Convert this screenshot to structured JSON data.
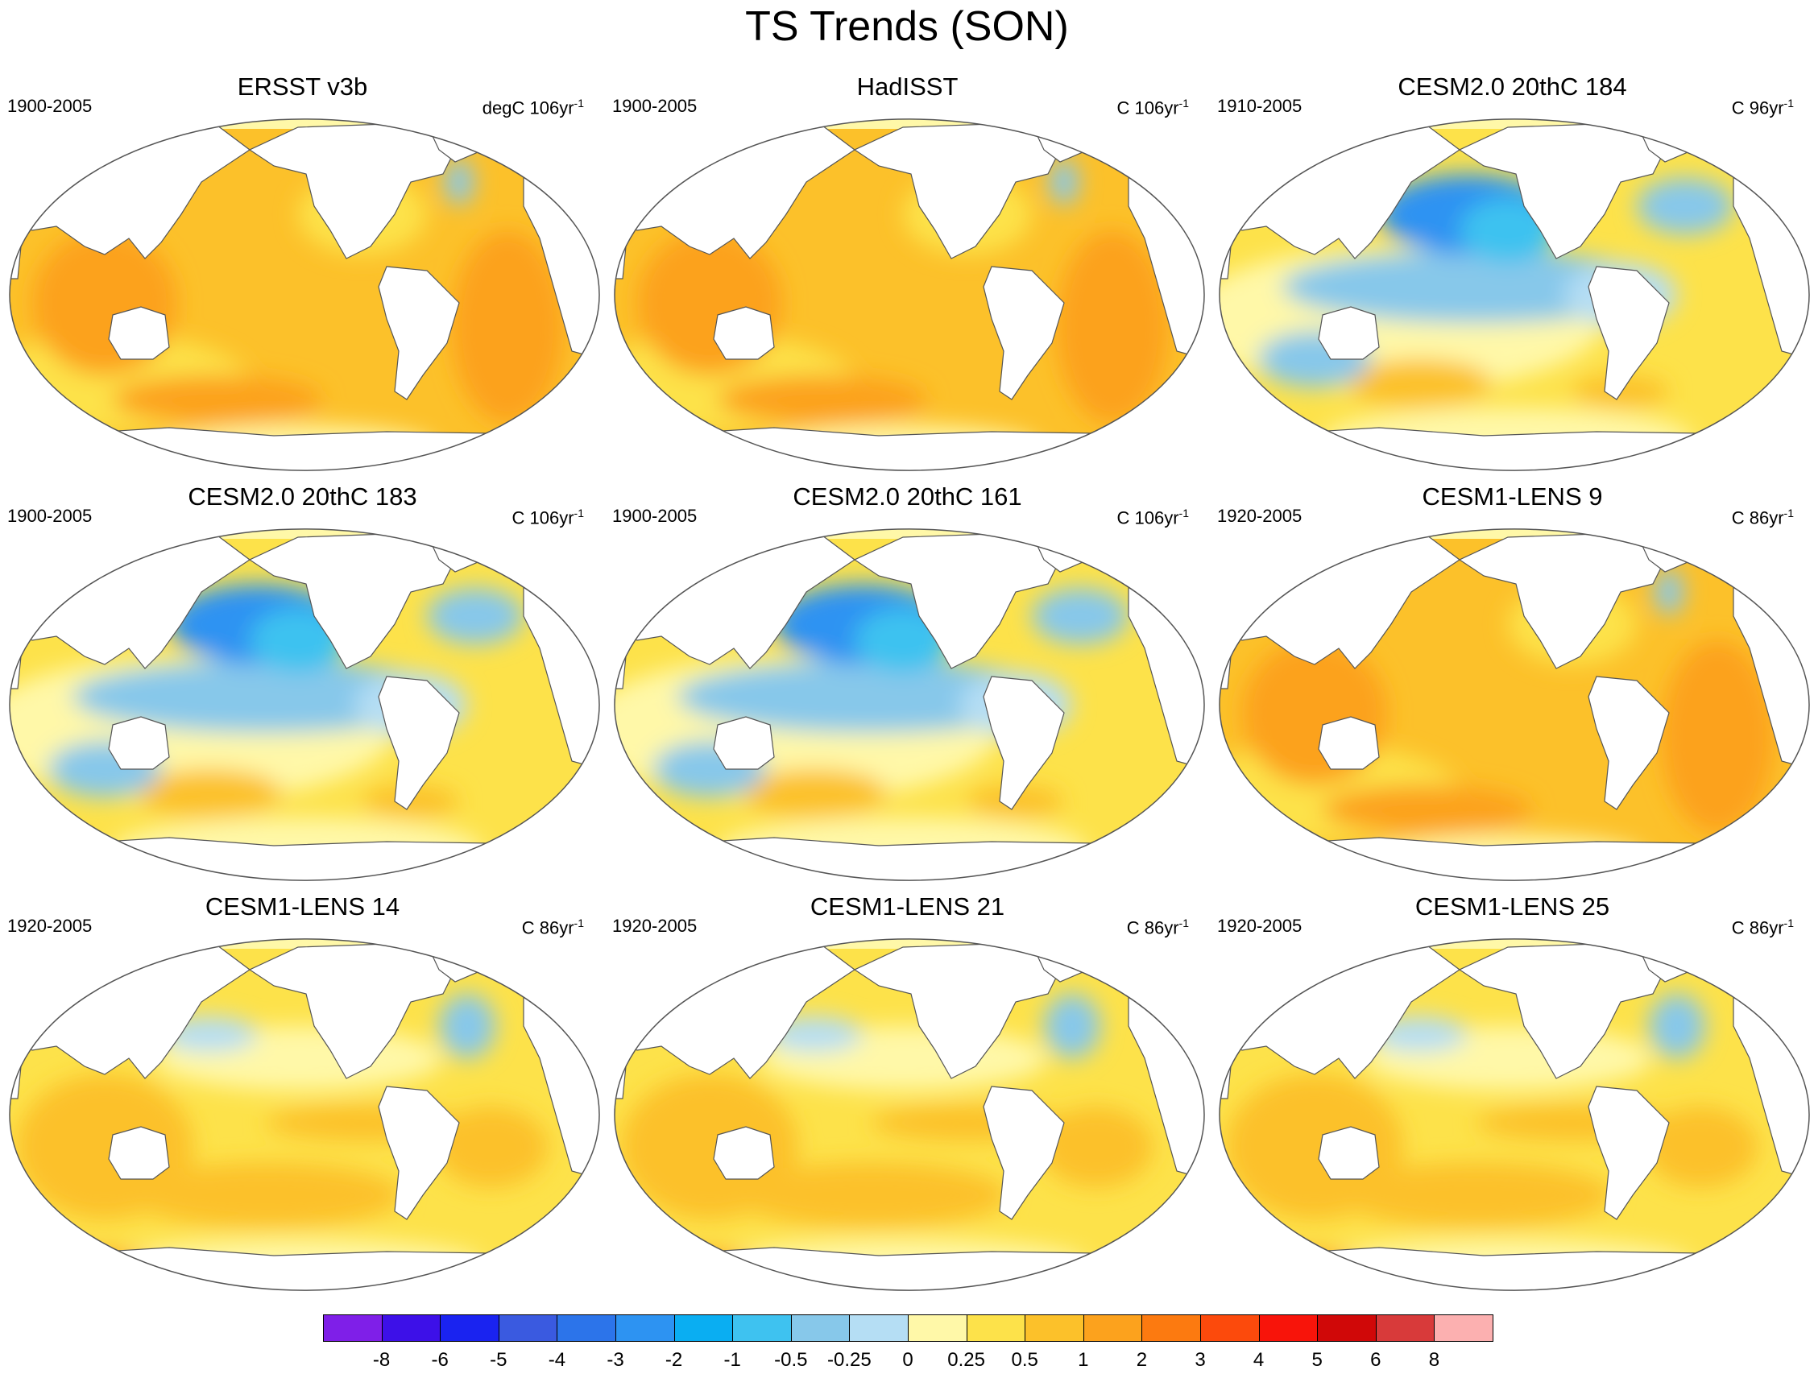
{
  "title": "TS Trends (SON)",
  "panels": [
    {
      "title": "ERSST v3b",
      "period": "1900-2005",
      "units_prefix": "degC 106yr",
      "units_sup": "-1",
      "pattern": "warm"
    },
    {
      "title": "HadISST",
      "period": "1900-2005",
      "units_prefix": "C 106yr",
      "units_sup": "-1",
      "pattern": "warm"
    },
    {
      "title": "CESM2.0 20thC 184",
      "period": "1910-2005",
      "units_prefix": "C 96yr",
      "units_sup": "-1",
      "pattern": "cool-north-pacific"
    },
    {
      "title": "CESM2.0 20thC 183",
      "period": "1900-2005",
      "units_prefix": "C 106yr",
      "units_sup": "-1",
      "pattern": "cool-north-pacific"
    },
    {
      "title": "CESM2.0 20thC 161",
      "period": "1900-2005",
      "units_prefix": "C 106yr",
      "units_sup": "-1",
      "pattern": "cool-north-pacific"
    },
    {
      "title": "CESM1-LENS 9",
      "period": "1920-2005",
      "units_prefix": "C 86yr",
      "units_sup": "-1",
      "pattern": "warm"
    },
    {
      "title": "CESM1-LENS 14",
      "period": "1920-2005",
      "units_prefix": "C 86yr",
      "units_sup": "-1",
      "pattern": "mild"
    },
    {
      "title": "CESM1-LENS 21",
      "period": "1920-2005",
      "units_prefix": "C 86yr",
      "units_sup": "-1",
      "pattern": "mild"
    },
    {
      "title": "CESM1-LENS 25",
      "period": "1920-2005",
      "units_prefix": "C 86yr",
      "units_sup": "-1",
      "pattern": "mild"
    }
  ],
  "colorbar": {
    "colors": [
      "#7f1fe8",
      "#3d10e8",
      "#1a23f0",
      "#3a5ae0",
      "#2c74ea",
      "#2d93f2",
      "#0aaef2",
      "#3ec2f0",
      "#87c8ea",
      "#b5def4",
      "#fff8a8",
      "#fde24a",
      "#fcc12a",
      "#fca21d",
      "#fc7a10",
      "#fc4a0c",
      "#f8140a",
      "#d00808",
      "#d83a3a",
      "#fcb0b0"
    ],
    "labels": [
      "-8",
      "-6",
      "-5",
      "-4",
      "-3",
      "-2",
      "-1",
      "-0.5",
      "-0.25",
      "0",
      "0.25",
      "0.5",
      "1",
      "2",
      "3",
      "4",
      "5",
      "6",
      "8"
    ]
  }
}
